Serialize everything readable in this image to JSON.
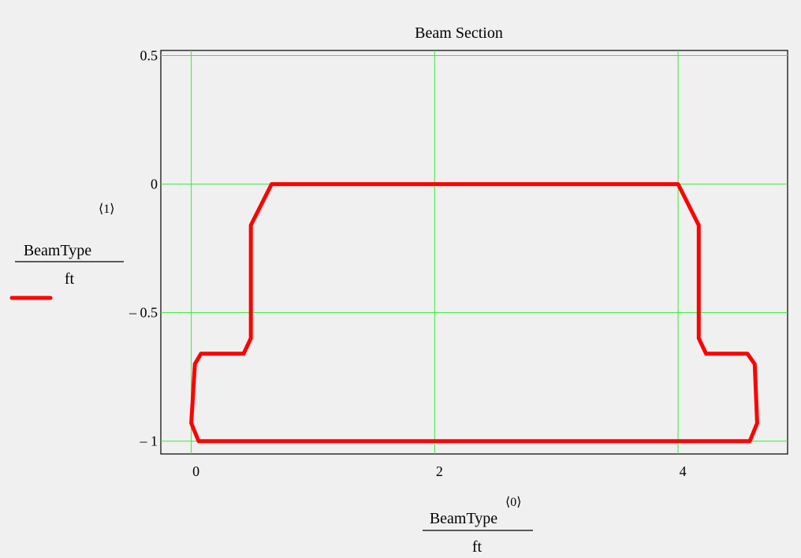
{
  "chart_data": {
    "type": "line",
    "title": "Beam Section",
    "xlabel": {
      "numerator": "BeamType",
      "superscript": "⟨0⟩",
      "denominator": "ft"
    },
    "ylabel": {
      "numerator": "BeamType",
      "superscript": "⟨1⟩",
      "denominator": "ft"
    },
    "xlim": [
      -0.25,
      4.9
    ],
    "ylim": [
      -1.05,
      0.52
    ],
    "x_ticks": [
      {
        "value": 0,
        "label": "0"
      },
      {
        "value": 2,
        "label": "2"
      },
      {
        "value": 4,
        "label": "4"
      }
    ],
    "y_ticks": [
      {
        "value": 0.5,
        "label": "0.5"
      },
      {
        "value": 0,
        "label": "0"
      },
      {
        "value": -0.5,
        "label": "– 0.5"
      },
      {
        "value": -1,
        "label": "– 1"
      }
    ],
    "grid": true,
    "grid_color": "#33ee33",
    "legend": "left",
    "series": [
      {
        "color": "#ff0000",
        "x": [
          0.06,
          0.0,
          0.03,
          0.08,
          0.43,
          0.49,
          0.49,
          0.66,
          4.0,
          4.17,
          4.17,
          4.23,
          4.57,
          4.63,
          4.65,
          4.59,
          0.06
        ],
        "y": [
          -1.0,
          -0.93,
          -0.7,
          -0.66,
          -0.66,
          -0.6,
          -0.16,
          0.0,
          0.0,
          -0.16,
          -0.6,
          -0.66,
          -0.66,
          -0.7,
          -0.93,
          -1.0,
          -1.0
        ]
      }
    ]
  }
}
